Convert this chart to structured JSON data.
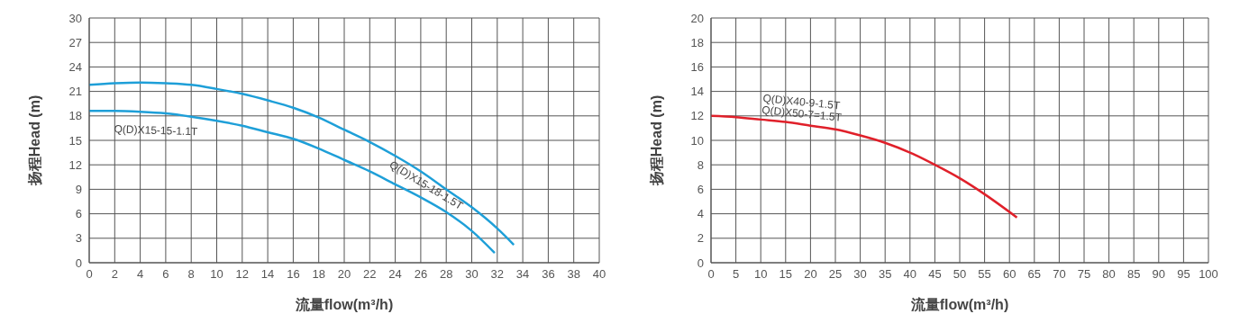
{
  "chart_data": [
    {
      "type": "line",
      "xlabel": "流量flow(m³/h)",
      "ylabel": "扬程Head (m)",
      "xlim": [
        0,
        40
      ],
      "xticks": [
        0,
        2,
        4,
        6,
        8,
        10,
        12,
        14,
        16,
        18,
        20,
        22,
        24,
        26,
        28,
        30,
        32,
        34,
        36,
        38,
        40
      ],
      "ylim": [
        0,
        30
      ],
      "yticks": [
        0,
        3,
        6,
        9,
        12,
        15,
        18,
        21,
        24,
        27,
        30
      ],
      "grid": true,
      "series": [
        {
          "name": "Q(D)X15-15-1.1T",
          "color": "#1e9fd8",
          "x": [
            0,
            2,
            4,
            6,
            8,
            10,
            12,
            14,
            16,
            18,
            20,
            22,
            24,
            26,
            28,
            30,
            31.8
          ],
          "values": [
            18.6,
            18.6,
            18.5,
            18.3,
            17.9,
            17.4,
            16.8,
            16.0,
            15.2,
            14.0,
            12.6,
            11.2,
            9.6,
            8.0,
            6.2,
            3.9,
            1.2
          ]
        },
        {
          "name": "Q(D)X15-18-1.5T",
          "color": "#1e9fd8",
          "x": [
            0,
            2,
            4,
            6,
            8,
            10,
            12,
            14,
            16,
            18,
            20,
            22,
            24,
            26,
            28,
            30,
            32,
            33.3
          ],
          "values": [
            21.8,
            22.0,
            22.1,
            22.0,
            21.8,
            21.3,
            20.7,
            19.9,
            19.0,
            17.8,
            16.3,
            14.8,
            13.1,
            11.2,
            9.0,
            6.8,
            4.2,
            2.2
          ]
        }
      ]
    },
    {
      "type": "line",
      "xlabel": "流量flow(m³/h)",
      "ylabel": "扬程Head (m)",
      "xlim": [
        0,
        100
      ],
      "xticks": [
        0,
        5,
        10,
        15,
        20,
        25,
        30,
        35,
        40,
        45,
        50,
        55,
        60,
        65,
        70,
        75,
        80,
        85,
        90,
        95,
        100
      ],
      "ylim": [
        0,
        20
      ],
      "yticks": [
        0,
        2,
        4,
        6,
        8,
        10,
        12,
        14,
        16,
        18,
        20
      ],
      "grid": true,
      "annotations": [
        "Q(D)X50-7=1.5T"
      ],
      "series": [
        {
          "name": "Q(D)X40-9-1.5T",
          "color": "#e0202a",
          "x": [
            0,
            5,
            10,
            15,
            20,
            25,
            30,
            35,
            40,
            45,
            50,
            55,
            61.5
          ],
          "values": [
            12,
            11.9,
            11.7,
            11.5,
            11.2,
            10.9,
            10.4,
            9.8,
            9.0,
            8.0,
            6.9,
            5.6,
            3.7
          ]
        }
      ]
    }
  ]
}
